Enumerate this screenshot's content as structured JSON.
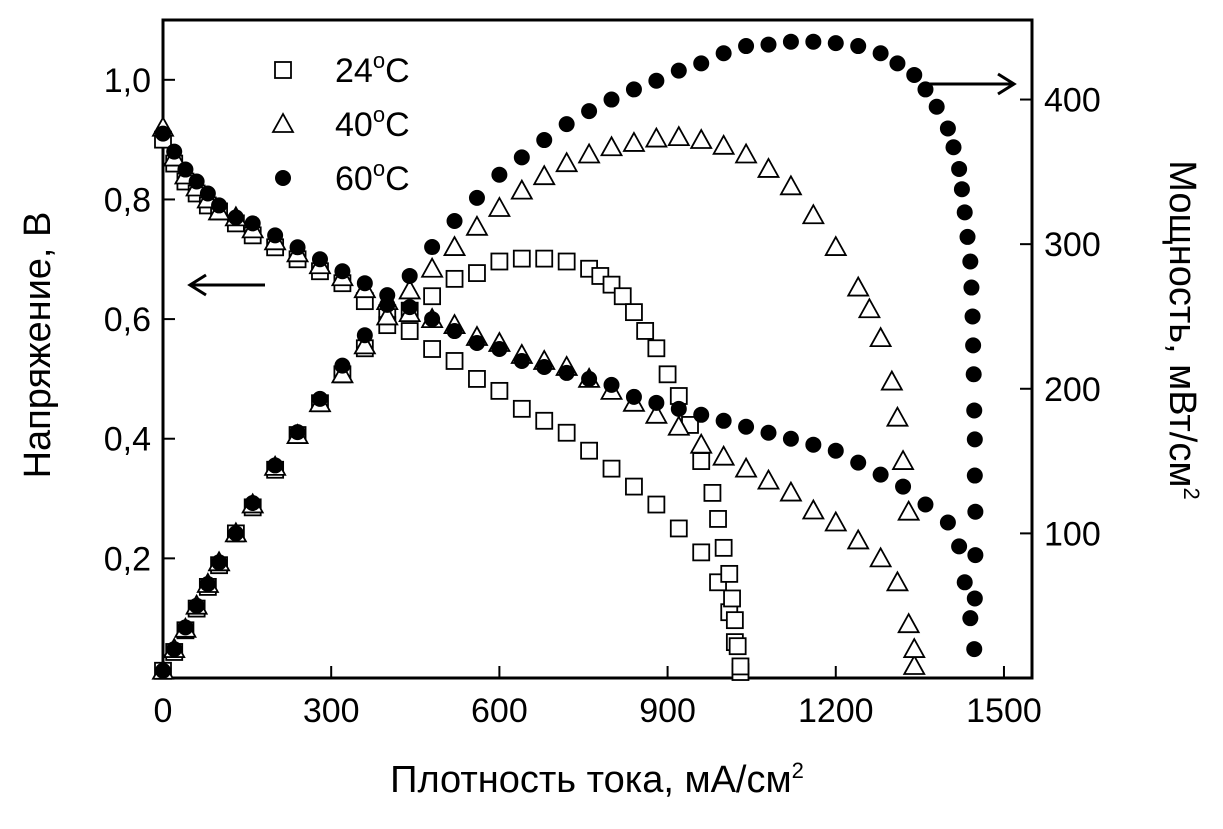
{
  "chart_data": {
    "type": "scatter",
    "xlabel": "Плотность тока, мА/см",
    "xlabel_sup": "2",
    "ylabel_left": "Напряжение, В",
    "ylabel_right": "Мощность, мВт/см",
    "ylabel_right_sup": "2",
    "xlim": [
      0,
      1550
    ],
    "ylim_left": [
      0,
      1.1
    ],
    "ylim_right": [
      0,
      455
    ],
    "x_ticks": [
      0,
      300,
      600,
      900,
      1200,
      1500
    ],
    "x_tick_labels": [
      "0",
      "300",
      "600",
      "900",
      "1200",
      "1500"
    ],
    "y_left_ticks": [
      0.2,
      0.4,
      0.6,
      0.8,
      1.0
    ],
    "y_left_tick_labels": [
      "0,2",
      "0,4",
      "0,6",
      "0,8",
      "1,0"
    ],
    "y_right_ticks": [
      100,
      200,
      300,
      400
    ],
    "y_right_tick_labels": [
      "100",
      "200",
      "300",
      "400"
    ],
    "legend_position": "top-left",
    "annotations": [
      {
        "type": "arrow",
        "direction": "left",
        "meaning": "voltage curves use left axis"
      },
      {
        "type": "arrow",
        "direction": "right",
        "meaning": "power curves use right axis"
      }
    ],
    "series": [
      {
        "name": "24°C",
        "name_base": "24",
        "name_sup": "o",
        "name_unit": "C",
        "marker": "square-open",
        "voltage": {
          "axis": "left",
          "x": [
            0,
            20,
            40,
            60,
            80,
            100,
            130,
            160,
            200,
            240,
            280,
            320,
            360,
            400,
            440,
            480,
            520,
            560,
            600,
            640,
            680,
            720,
            760,
            800,
            840,
            880,
            920,
            960,
            990,
            1010,
            1020,
            1030
          ],
          "y": [
            0.9,
            0.86,
            0.83,
            0.81,
            0.79,
            0.78,
            0.76,
            0.74,
            0.72,
            0.7,
            0.68,
            0.66,
            0.63,
            0.61,
            0.58,
            0.55,
            0.53,
            0.5,
            0.48,
            0.45,
            0.43,
            0.41,
            0.38,
            0.35,
            0.32,
            0.29,
            0.25,
            0.21,
            0.16,
            0.11,
            0.06,
            0.01
          ]
        },
        "power": {
          "axis": "right",
          "x": [
            0,
            20,
            40,
            60,
            80,
            100,
            130,
            160,
            200,
            240,
            280,
            320,
            360,
            400,
            440,
            480,
            520,
            560,
            600,
            640,
            680,
            720,
            760,
            780,
            800,
            820,
            840,
            860,
            880,
            900,
            920,
            940,
            960,
            980,
            990,
            1000,
            1010,
            1015,
            1020,
            1025,
            1030
          ],
          "y": [
            5,
            18,
            33,
            48,
            63,
            78,
            100,
            118,
            144,
            168,
            190,
            210,
            228,
            244,
            254,
            264,
            276,
            280,
            288,
            290,
            290,
            288,
            283,
            278,
            272,
            264,
            253,
            240,
            228,
            210,
            195,
            175,
            150,
            128,
            110,
            90,
            72,
            55,
            40,
            22,
            8
          ]
        }
      },
      {
        "name": "40°C",
        "name_base": "40",
        "name_sup": "o",
        "name_unit": "C",
        "marker": "triangle-open",
        "voltage": {
          "axis": "left",
          "x": [
            0,
            20,
            40,
            60,
            80,
            100,
            130,
            160,
            200,
            240,
            280,
            320,
            360,
            400,
            440,
            480,
            520,
            560,
            600,
            640,
            680,
            720,
            760,
            800,
            840,
            880,
            920,
            960,
            1000,
            1040,
            1080,
            1120,
            1160,
            1200,
            1240,
            1280,
            1310,
            1330,
            1340
          ],
          "y": [
            0.92,
            0.87,
            0.84,
            0.82,
            0.8,
            0.78,
            0.77,
            0.75,
            0.73,
            0.71,
            0.69,
            0.67,
            0.65,
            0.63,
            0.61,
            0.6,
            0.59,
            0.57,
            0.56,
            0.54,
            0.53,
            0.52,
            0.5,
            0.48,
            0.46,
            0.44,
            0.42,
            0.39,
            0.37,
            0.35,
            0.33,
            0.31,
            0.28,
            0.26,
            0.23,
            0.2,
            0.16,
            0.09,
            0.02
          ]
        },
        "power": {
          "axis": "right",
          "x": [
            0,
            20,
            40,
            60,
            80,
            100,
            130,
            160,
            200,
            240,
            280,
            320,
            360,
            400,
            440,
            480,
            520,
            560,
            600,
            640,
            680,
            720,
            760,
            800,
            840,
            880,
            920,
            960,
            1000,
            1040,
            1080,
            1120,
            1160,
            1200,
            1240,
            1260,
            1280,
            1300,
            1310,
            1320,
            1330,
            1340
          ],
          "y": [
            5,
            20,
            34,
            50,
            65,
            80,
            100,
            120,
            146,
            168,
            190,
            210,
            230,
            250,
            268,
            283,
            298,
            312,
            325,
            337,
            347,
            356,
            362,
            367,
            370,
            373,
            374,
            372,
            368,
            362,
            352,
            340,
            320,
            298,
            270,
            255,
            235,
            205,
            180,
            150,
            115,
            20
          ]
        }
      },
      {
        "name": "60°C",
        "name_base": "60",
        "name_sup": "o",
        "name_unit": "C",
        "marker": "circle-filled",
        "voltage": {
          "axis": "left",
          "x": [
            0,
            20,
            40,
            60,
            80,
            100,
            130,
            160,
            200,
            240,
            280,
            320,
            360,
            400,
            440,
            480,
            520,
            560,
            600,
            640,
            680,
            720,
            760,
            800,
            840,
            880,
            920,
            960,
            1000,
            1040,
            1080,
            1120,
            1160,
            1200,
            1240,
            1280,
            1320,
            1360,
            1400,
            1420,
            1430,
            1440
          ],
          "y": [
            0.91,
            0.88,
            0.85,
            0.83,
            0.81,
            0.79,
            0.77,
            0.76,
            0.74,
            0.72,
            0.7,
            0.68,
            0.66,
            0.64,
            0.62,
            0.6,
            0.58,
            0.56,
            0.55,
            0.53,
            0.52,
            0.51,
            0.5,
            0.49,
            0.47,
            0.46,
            0.45,
            0.44,
            0.43,
            0.42,
            0.41,
            0.4,
            0.39,
            0.38,
            0.36,
            0.34,
            0.32,
            0.29,
            0.26,
            0.22,
            0.16,
            0.1
          ]
        },
        "power": {
          "axis": "right",
          "x": [
            0,
            20,
            40,
            60,
            80,
            100,
            130,
            160,
            200,
            240,
            280,
            320,
            360,
            400,
            440,
            480,
            520,
            560,
            600,
            640,
            680,
            720,
            760,
            800,
            840,
            880,
            920,
            960,
            1000,
            1040,
            1080,
            1120,
            1160,
            1200,
            1240,
            1280,
            1310,
            1340,
            1360,
            1380,
            1400,
            1410,
            1420,
            1425,
            1430,
            1435,
            1440,
            1442,
            1444,
            1445,
            1446,
            1447,
            1448,
            1448,
            1449,
            1449,
            1448,
            1447
          ],
          "y": [
            5,
            20,
            35,
            50,
            65,
            80,
            100,
            121,
            147,
            170,
            193,
            216,
            237,
            258,
            278,
            298,
            316,
            332,
            348,
            360,
            372,
            383,
            392,
            400,
            407,
            413,
            420,
            425,
            432,
            437,
            438,
            440,
            440,
            439,
            437,
            432,
            425,
            417,
            407,
            395,
            380,
            367,
            352,
            338,
            322,
            305,
            288,
            270,
            250,
            230,
            210,
            185,
            165,
            140,
            115,
            85,
            55,
            20
          ]
        }
      }
    ]
  }
}
